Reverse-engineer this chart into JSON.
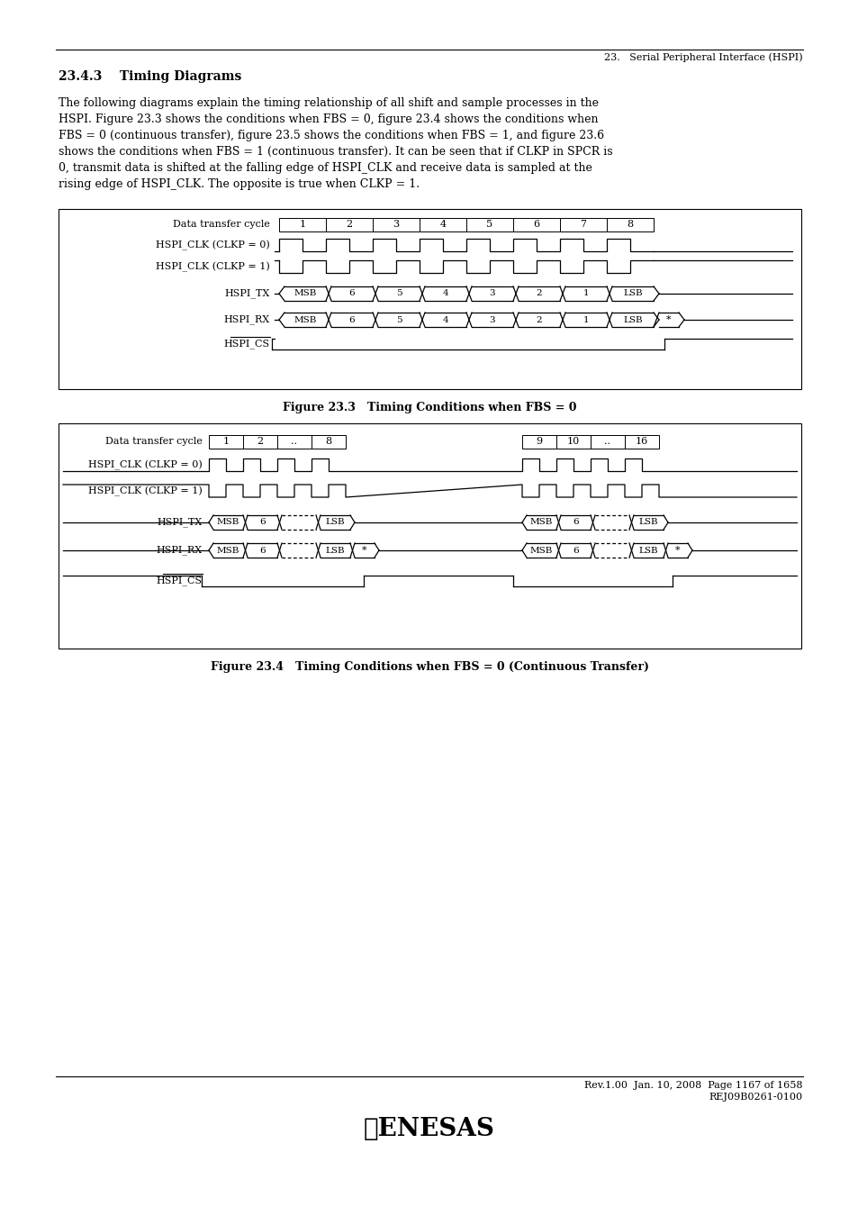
{
  "page_header": "23.   Serial Peripheral Interface (HSPI)",
  "section_title": "23.4.3    Timing Diagrams",
  "body_text": [
    "The following diagrams explain the timing relationship of all shift and sample processes in the",
    "HSPI. Figure 23.3 shows the conditions when FBS = 0, figure 23.4 shows the conditions when",
    "FBS = 0 (continuous transfer), figure 23.5 shows the conditions when FBS = 1, and figure 23.6",
    "shows the conditions when FBS = 1 (continuous transfer). It can be seen that if CLKP in SPCR is",
    "0, transmit data is shifted at the falling edge of HSPI_CLK and receive data is sampled at the",
    "rising edge of HSPI_CLK. The opposite is true when CLKP = 1."
  ],
  "fig1_caption": "Figure 23.3   Timing Conditions when FBS = 0",
  "fig2_caption": "Figure 23.4   Timing Conditions when FBS = 0 (Continuous Transfer)",
  "footer_line1": "Rev.1.00  Jan. 10, 2008  Page 1167 of 1658",
  "footer_line2": "REJ09B0261-0100",
  "bg_color": "#ffffff",
  "text_color": "#000000"
}
